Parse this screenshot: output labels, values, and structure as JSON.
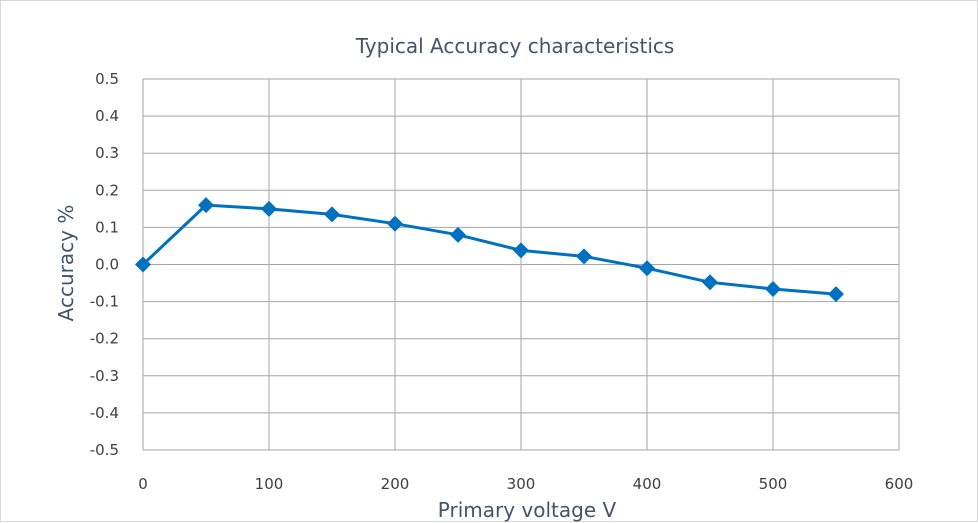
{
  "chart_data": {
    "type": "line",
    "title": "Typical Accuracy characteristics",
    "xlabel": "Primary voltage V",
    "ylabel": "Accuracy %",
    "xlim": [
      0,
      600
    ],
    "ylim": [
      -0.5,
      0.5
    ],
    "x_ticks": [
      0,
      100,
      200,
      300,
      400,
      500,
      600
    ],
    "y_ticks": [
      "0.5",
      "0.4",
      "0.3",
      "0.2",
      "0.1",
      "0.0",
      "-0.1",
      "-0.2",
      "-0.3",
      "-0.4",
      "-0.5"
    ],
    "grid": true,
    "legend": "none",
    "series": [
      {
        "color": "#0070c0",
        "marker": "diamond",
        "x": [
          0,
          50,
          100,
          150,
          200,
          250,
          300,
          350,
          400,
          450,
          500,
          550
        ],
        "y": [
          0.0,
          0.16,
          0.15,
          0.135,
          0.11,
          0.08,
          0.038,
          0.022,
          -0.01,
          -0.048,
          -0.066,
          -0.08
        ]
      }
    ]
  }
}
